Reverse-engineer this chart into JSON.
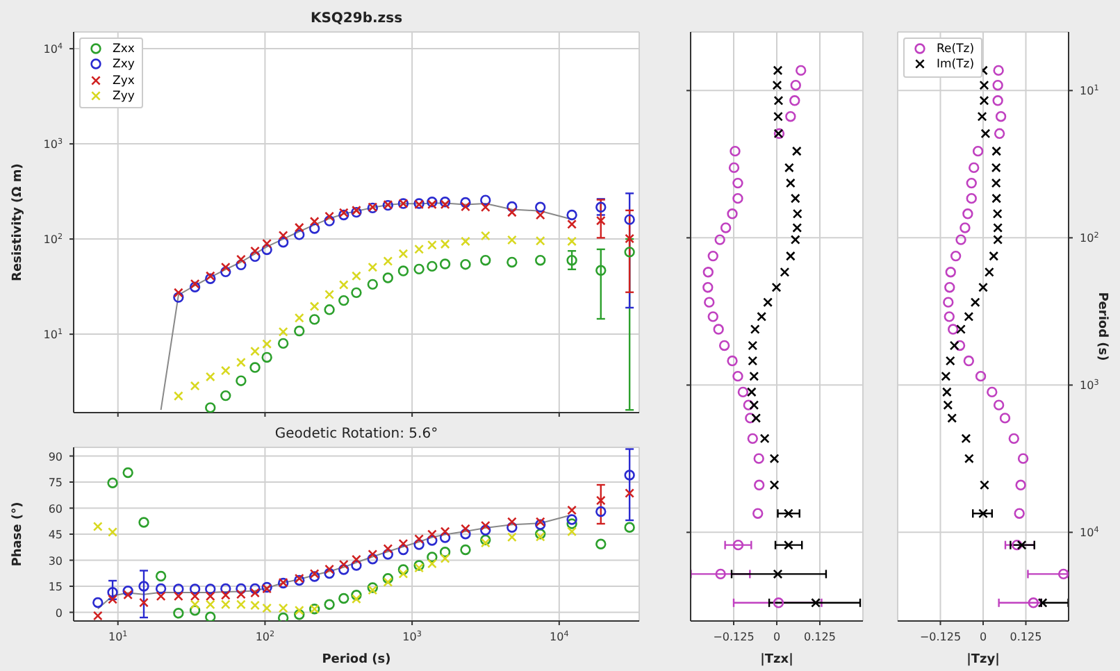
{
  "chart_data": [
    {
      "type": "scatter",
      "title": "KSQ29b.zss",
      "ylabel": "Resistivity (Ω m)",
      "log": "xy",
      "grid": true,
      "legend": "top left",
      "tick_labels": "y",
      "xlim": [
        5,
        35000
      ],
      "xticks": [
        {
          "value": 10,
          "label": null
        },
        {
          "value": 100,
          "label": null
        },
        {
          "value": 1000,
          "label": null
        },
        {
          "value": 10000,
          "label": null
        }
      ],
      "ylim": [
        1.5,
        15000
      ],
      "yticks": [
        {
          "value": 10,
          "label": "10$^{1}$"
        },
        {
          "value": 100,
          "label": "10$^{2}$"
        },
        {
          "value": 1000,
          "label": "10$^{3}$"
        },
        {
          "value": 10000,
          "label": "10$^{4}$"
        }
      ],
      "x": [
        19.6,
        25.8,
        33.4,
        42.5,
        54,
        68.7,
        85.5,
        103,
        133,
        171,
        217,
        274,
        343,
        418,
        539,
        685,
        871,
        1115,
        1367,
        1676,
        2307,
        3155,
        4775,
        7447,
        12200,
        19200,
        30100
      ],
      "series": [
        {
          "type": "line",
          "color": "#888888",
          "values": [
            1.6,
            25.8,
            32.5,
            39.6,
            47.9,
            57.3,
            70,
            83,
            100,
            120,
            141,
            164,
            184,
            196,
            214,
            228,
            236,
            234,
            238,
            238,
            230,
            236,
            205,
            197,
            161,
            null,
            null
          ]
        },
        {
          "name": "Zxx",
          "color": "#2ca02c",
          "marker": "circle",
          "values": [
            null,
            null,
            null,
            1.69,
            2.26,
            3.24,
            4.47,
            5.71,
            8.0,
            10.8,
            14.3,
            18.1,
            22.6,
            27.3,
            33.4,
            39.1,
            46.2,
            48.3,
            51.7,
            54.7,
            54.1,
            59.8,
            57.1,
            59.8,
            59.8,
            46.8,
            73
          ],
          "errors": [
            null,
            null,
            null,
            null,
            null,
            null,
            null,
            null,
            null,
            null,
            null,
            null,
            null,
            null,
            null,
            null,
            null,
            null,
            null,
            null,
            null,
            null,
            null,
            null,
            [
              48,
              75
            ],
            [
              14.5,
              78
            ],
            [
              1.6,
              100
            ]
          ]
        },
        {
          "name": "Zxy",
          "color": "#2a2ad0",
          "marker": "circle",
          "values": [
            null,
            24.4,
            31.3,
            38.3,
            45.2,
            53.5,
            65.5,
            77.3,
            92.5,
            111,
            129,
            155,
            179,
            191,
            212,
            226,
            236,
            236,
            245,
            245,
            242,
            256,
            219,
            216,
            179,
            216,
            160
          ],
          "errors": [
            null,
            null,
            null,
            null,
            null,
            null,
            null,
            null,
            null,
            null,
            null,
            null,
            null,
            null,
            null,
            null,
            null,
            null,
            null,
            null,
            null,
            null,
            null,
            null,
            null,
            [
              179,
              264
            ],
            [
              19,
              302
            ]
          ]
        },
        {
          "name": "Zyx",
          "color": "#d02020",
          "marker": "cross",
          "values": [
            null,
            27.3,
            33.8,
            40.9,
            50.6,
            61.1,
            74.8,
            89.4,
            109,
            132,
            153,
            173,
            189,
            200,
            216,
            229,
            236,
            231,
            231,
            231,
            219,
            216,
            191,
            179,
            143,
            156,
            101
          ],
          "errors": [
            null,
            null,
            null,
            null,
            null,
            null,
            null,
            null,
            null,
            null,
            null,
            null,
            null,
            null,
            null,
            null,
            null,
            null,
            null,
            null,
            null,
            null,
            null,
            null,
            null,
            [
              103,
              259
            ],
            [
              27.6,
              200
            ]
          ]
        },
        {
          "name": "Zyy",
          "color": "#d8d820",
          "marker": "cross",
          "values": [
            null,
            2.24,
            2.86,
            3.57,
            4.14,
            5.06,
            6.61,
            7.9,
            10.6,
            14.8,
            19.6,
            26.1,
            33,
            40.9,
            50.6,
            58.5,
            70,
            78.2,
            86.5,
            88.5,
            94.6,
            108,
            97.8,
            95.6,
            94.6,
            null,
            null
          ]
        }
      ]
    },
    {
      "type": "scatter",
      "title": "Geodetic Rotation: 5.6°",
      "xlabel": "Period (s)",
      "ylabel": "Phase (°)",
      "log": "x",
      "grid": true,
      "xlim": [
        5,
        35000
      ],
      "xticks": [
        {
          "value": 10,
          "label": "10$^{1}$"
        },
        {
          "value": 100,
          "label": "10$^{2}$"
        },
        {
          "value": 1000,
          "label": "10$^{3}$"
        },
        {
          "value": 10000,
          "label": "10$^{4}$"
        }
      ],
      "ylim": [
        -5,
        95
      ],
      "yticks": [
        0,
        15,
        30,
        45,
        60,
        75,
        90
      ],
      "x": [
        7.3,
        9.2,
        11.7,
        15,
        19.6,
        25.8,
        33.4,
        42.5,
        54,
        68.7,
        85.5,
        103,
        133,
        171,
        217,
        274,
        343,
        418,
        539,
        685,
        871,
        1115,
        1367,
        1676,
        2307,
        3155,
        4775,
        7447,
        12200,
        19200,
        30100
      ],
      "series": [
        {
          "type": "line",
          "color": "#888888",
          "values": [
            2,
            9.5,
            11.2,
            10.3,
            11.5,
            11.4,
            11.4,
            11.4,
            11.8,
            12,
            12.4,
            14,
            17,
            19,
            21.4,
            23.6,
            26,
            28.7,
            32,
            35,
            37.8,
            40.6,
            43.2,
            44.8,
            46.6,
            48.6,
            50.5,
            51.3,
            56.1,
            null,
            null
          ]
        },
        {
          "color": "#2ca02c",
          "marker": "circle",
          "values": [
            null,
            74.5,
            80.4,
            51.8,
            20.8,
            -0.5,
            1.1,
            -2.7,
            null,
            null,
            null,
            null,
            -3.2,
            -1.3,
            1.9,
            4.5,
            8,
            9.9,
            14.2,
            19.5,
            24.6,
            27,
            31.8,
            34.7,
            36,
            41.7,
            null,
            45.1,
            51,
            39.3,
            48.9
          ]
        },
        {
          "color": "#2a2ad0",
          "marker": "circle",
          "values": [
            5.6,
            11.5,
            12.3,
            15,
            13.6,
            13.4,
            13.4,
            13.4,
            13.6,
            13.6,
            13.6,
            14.4,
            16.8,
            18.4,
            20.6,
            22.4,
            24.6,
            27,
            30.7,
            33.4,
            36,
            39,
            41.4,
            43,
            45.1,
            47.3,
            48.9,
            50.5,
            53.4,
            58,
            79
          ],
          "errors": [
            null,
            [
              7.5,
              18.2
            ],
            null,
            [
              -3,
              24
            ],
            null,
            null,
            null,
            null,
            null,
            null,
            null,
            null,
            null,
            null,
            null,
            null,
            null,
            null,
            null,
            null,
            null,
            null,
            null,
            null,
            null,
            null,
            null,
            null,
            null,
            null,
            [
              53,
              94
            ]
          ]
        },
        {
          "color": "#d02020",
          "marker": "cross",
          "values": [
            -2,
            7.5,
            10.1,
            5.6,
            9.3,
            9.3,
            9.3,
            9.3,
            9.9,
            10.4,
            11.2,
            13.6,
            17.1,
            19.5,
            22.2,
            24.8,
            27.5,
            30.4,
            33.4,
            36.6,
            39.5,
            42.2,
            44.9,
            46.5,
            48.1,
            49.9,
            52.1,
            52.1,
            58.8,
            64.4,
            68.6
          ],
          "errors": [
            null,
            null,
            null,
            null,
            null,
            null,
            null,
            null,
            null,
            null,
            null,
            null,
            null,
            null,
            null,
            null,
            null,
            null,
            null,
            null,
            null,
            null,
            null,
            null,
            null,
            null,
            null,
            null,
            null,
            [
              51,
              73.4
            ],
            null
          ]
        },
        {
          "color": "#d8d820",
          "marker": "cross",
          "values": [
            49.4,
            46.2,
            null,
            null,
            null,
            null,
            4.5,
            4.5,
            4.5,
            4.5,
            4,
            2.4,
            2.4,
            1.1,
            1.9,
            null,
            null,
            7.7,
            12.8,
            17.4,
            22.2,
            25.6,
            28,
            31,
            null,
            40,
            43.3,
            43.5,
            46.5,
            null,
            null
          ]
        }
      ]
    },
    {
      "type": "scatter",
      "xlabel": "|Tzx|",
      "log": "y",
      "grid": true,
      "tick_labels": "x",
      "xlim": [
        -0.25,
        0.25
      ],
      "xticks": [
        {
          "value": -0.125,
          "label": "−0.125"
        },
        {
          "value": 0,
          "label": "0"
        },
        {
          "value": 0.125,
          "label": "0.125"
        }
      ],
      "ylim": [
        40000,
        4
      ],
      "yticks": [
        {
          "value": 10,
          "label": null
        },
        {
          "value": 100,
          "label": null
        },
        {
          "value": 1000,
          "label": null
        },
        {
          "value": 10000,
          "label": null
        }
      ],
      "series": [
        {
          "color": "#c040c0",
          "marker": "circle",
          "x": [
            0.07,
            0.055,
            0.052,
            0.04,
            0.007,
            -0.121,
            -0.124,
            -0.113,
            -0.113,
            -0.129,
            -0.148,
            -0.165,
            -0.185,
            -0.199,
            -0.2,
            -0.196,
            -0.185,
            -0.169,
            -0.152,
            -0.129,
            -0.113,
            -0.098,
            -0.082,
            -0.077,
            -0.07,
            -0.052,
            -0.051,
            -0.055,
            -0.112,
            -0.163,
            0.005
          ],
          "values": [
            7.3,
            9.2,
            11.7,
            15,
            19.6,
            25.8,
            33.4,
            42.5,
            54,
            68.7,
            85.5,
            103,
            133,
            171,
            217,
            274,
            343,
            418,
            539,
            685,
            871,
            1115,
            1367,
            1676,
            2307,
            3155,
            4775,
            7447,
            12200,
            19200,
            30100
          ],
          "xerrors": [
            null,
            null,
            null,
            null,
            null,
            null,
            null,
            null,
            null,
            null,
            null,
            null,
            null,
            null,
            null,
            null,
            null,
            null,
            null,
            null,
            null,
            null,
            null,
            null,
            null,
            null,
            null,
            null,
            [
              -0.15,
              -0.074
            ],
            [
              -0.249,
              -0.078
            ],
            [
              -0.125,
              0.13
            ]
          ]
        },
        {
          "color": "#000000",
          "marker": "cross",
          "x": [
            0.003,
            0.001,
            0.005,
            0.004,
            0.005,
            0.058,
            0.036,
            0.04,
            0.054,
            0.06,
            0.059,
            0.054,
            0.04,
            0.023,
            -0.001,
            -0.026,
            -0.044,
            -0.063,
            -0.07,
            -0.07,
            -0.066,
            -0.073,
            -0.066,
            -0.06,
            -0.035,
            -0.007,
            -0.007,
            0.034,
            0.034,
            0.003,
            0.113
          ],
          "values": [
            7.3,
            9.2,
            11.7,
            15,
            19.6,
            25.8,
            33.4,
            42.5,
            54,
            68.7,
            85.5,
            103,
            133,
            171,
            217,
            274,
            343,
            418,
            539,
            685,
            871,
            1115,
            1367,
            1676,
            2307,
            3155,
            4775,
            7447,
            12200,
            19200,
            30100
          ],
          "xerrors": [
            null,
            null,
            null,
            null,
            null,
            null,
            null,
            null,
            null,
            null,
            null,
            null,
            null,
            null,
            null,
            null,
            null,
            null,
            null,
            null,
            null,
            null,
            null,
            null,
            null,
            null,
            null,
            [
              0.003,
              0.066
            ],
            [
              -0.004,
              0.073
            ],
            [
              -0.131,
              0.143
            ],
            [
              -0.022,
              0.242
            ]
          ]
        }
      ]
    },
    {
      "type": "scatter",
      "xlabel": "|Tzy|",
      "ylabel": "Period (s)",
      "log": "y",
      "grid": true,
      "legend": "top left",
      "xlim": [
        -0.25,
        0.25
      ],
      "xticks": [
        {
          "value": -0.125,
          "label": "−0.125"
        },
        {
          "value": 0,
          "label": "0"
        },
        {
          "value": 0.125,
          "label": "0.125"
        }
      ],
      "ylim": [
        40000,
        4
      ],
      "yticks": [
        {
          "value": 10,
          "label": "10$^{1}$"
        },
        {
          "value": 100,
          "label": "10$^{2}$"
        },
        {
          "value": 1000,
          "label": "10$^{3}$"
        },
        {
          "value": 10000,
          "label": "10$^{4}$"
        }
      ],
      "series": [
        {
          "name": "Re(Tz)",
          "color": "#c040c0",
          "marker": "circle",
          "x": [
            0.045,
            0.043,
            0.043,
            0.052,
            0.048,
            -0.015,
            -0.027,
            -0.034,
            -0.034,
            -0.045,
            -0.053,
            -0.065,
            -0.08,
            -0.095,
            -0.098,
            -0.102,
            -0.099,
            -0.088,
            -0.068,
            -0.042,
            -0.007,
            0.026,
            0.046,
            0.064,
            0.09,
            0.117,
            0.11,
            0.106,
            0.099,
            0.235,
            0.147
          ],
          "values": [
            7.3,
            9.2,
            11.7,
            15,
            19.6,
            25.8,
            33.4,
            42.5,
            54,
            68.7,
            85.5,
            103,
            133,
            171,
            217,
            274,
            343,
            418,
            539,
            685,
            871,
            1115,
            1367,
            1676,
            2307,
            3155,
            4775,
            7447,
            12200,
            19200,
            30100
          ],
          "xerrors": [
            null,
            null,
            null,
            null,
            null,
            null,
            null,
            null,
            null,
            null,
            null,
            null,
            null,
            null,
            null,
            null,
            null,
            null,
            null,
            null,
            null,
            null,
            null,
            null,
            null,
            null,
            null,
            null,
            [
              0.065,
              0.15
            ],
            [
              0.131,
              0.249
            ],
            [
              0.046,
              0.17
            ]
          ]
        },
        {
          "name": "Im(Tz)",
          "color": "#000000",
          "marker": "cross",
          "x": [
            0,
            0.003,
            0.003,
            -0.003,
            0.007,
            0.039,
            0.038,
            0.038,
            0.039,
            0.042,
            0.043,
            0.043,
            0.031,
            0.018,
            0,
            -0.023,
            -0.042,
            -0.065,
            -0.084,
            -0.096,
            -0.109,
            -0.106,
            -0.103,
            -0.091,
            -0.05,
            -0.041,
            0.004,
            0,
            0.113,
            null,
            0.174
          ],
          "values": [
            7.3,
            9.2,
            11.7,
            15,
            19.6,
            25.8,
            33.4,
            42.5,
            54,
            68.7,
            85.5,
            103,
            133,
            171,
            217,
            274,
            343,
            418,
            539,
            685,
            871,
            1115,
            1367,
            1676,
            2307,
            3155,
            4775,
            7447,
            12200,
            null,
            30100
          ],
          "xerrors": [
            null,
            null,
            null,
            null,
            null,
            null,
            null,
            null,
            null,
            null,
            null,
            null,
            null,
            null,
            null,
            null,
            null,
            null,
            null,
            null,
            null,
            null,
            null,
            null,
            null,
            null,
            null,
            [
              -0.03,
              0.026
            ],
            [
              0.08,
              0.15
            ],
            null,
            [
              0.17,
              0.249
            ]
          ]
        }
      ]
    }
  ]
}
